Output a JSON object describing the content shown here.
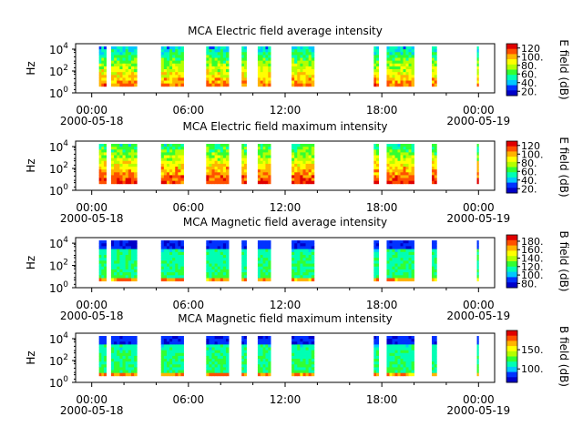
{
  "colors": {
    "colormap": [
      "#0000c8",
      "#0032ff",
      "#00c8ff",
      "#00ffb4",
      "#32ff32",
      "#b4ff00",
      "#ffff00",
      "#ffb400",
      "#ff5000",
      "#e00000"
    ],
    "axis": "#000000",
    "background": "#ffffff"
  },
  "chart_data": [
    {
      "type": "heatmap",
      "title": "MCA  Electric field average intensity",
      "ylabel": "Hz",
      "ytick_labels": [
        "10^0",
        "10^2",
        "10^4"
      ],
      "ylim_log10": [
        0,
        4.5
      ],
      "xtick_labels": [
        "00:00",
        "06:00",
        "12:00",
        "18:00",
        "00:00"
      ],
      "xtick_hours": [
        0,
        6,
        12,
        18,
        24
      ],
      "date_labels": [
        "2000-05-18",
        "2000-05-19"
      ],
      "xlim_hours": [
        -1.0,
        25.0
      ],
      "colorbar": {
        "label": "E field (dB)",
        "ticks": [
          20,
          40,
          60,
          80,
          100,
          120
        ],
        "tick_labels": [
          "20.",
          "40.",
          "60.",
          "80.",
          "100.",
          "120"
        ],
        "range": [
          10,
          130
        ]
      },
      "data_intervals_hours": [
        [
          0.45,
          0.9
        ],
        [
          1.2,
          2.8
        ],
        [
          4.3,
          5.7
        ],
        [
          7.1,
          8.5
        ],
        [
          9.3,
          9.6
        ],
        [
          10.3,
          11.1
        ],
        [
          12.4,
          13.8
        ],
        [
          17.5,
          17.8
        ],
        [
          18.3,
          20.0
        ],
        [
          21.1,
          21.4
        ],
        [
          23.9,
          24.0
        ]
      ],
      "intensity_profile": "high_at_low_freq"
    },
    {
      "type": "heatmap",
      "title": "MCA  Electric field maximum intensity",
      "ylabel": "Hz",
      "ytick_labels": [
        "10^0",
        "10^2",
        "10^4"
      ],
      "ylim_log10": [
        0,
        4.5
      ],
      "xtick_labels": [
        "00:00",
        "06:00",
        "12:00",
        "18:00",
        "00:00"
      ],
      "xtick_hours": [
        0,
        6,
        12,
        18,
        24
      ],
      "date_labels": [
        "2000-05-18",
        "2000-05-19"
      ],
      "xlim_hours": [
        -1.0,
        25.0
      ],
      "colorbar": {
        "label": "E field (dB)",
        "ticks": [
          20,
          40,
          60,
          80,
          100,
          120
        ],
        "tick_labels": [
          "20.",
          "40.",
          "60.",
          "80.",
          "100.",
          "120"
        ],
        "range": [
          10,
          130
        ]
      },
      "data_intervals_hours": [
        [
          0.45,
          0.9
        ],
        [
          1.2,
          2.8
        ],
        [
          4.3,
          5.7
        ],
        [
          7.1,
          8.5
        ],
        [
          9.3,
          9.6
        ],
        [
          10.3,
          11.1
        ],
        [
          12.4,
          13.8
        ],
        [
          17.5,
          17.8
        ],
        [
          18.3,
          20.0
        ],
        [
          21.1,
          21.4
        ],
        [
          23.9,
          24.0
        ]
      ],
      "intensity_profile": "high_at_low_freq_strong"
    },
    {
      "type": "heatmap",
      "title": "MCA  Magnetic field average intensity",
      "ylabel": "Hz",
      "ytick_labels": [
        "10^0",
        "10^2",
        "10^4"
      ],
      "ylim_log10": [
        0,
        4.5
      ],
      "xtick_labels": [
        "00:00",
        "06:00",
        "12:00",
        "18:00",
        "00:00"
      ],
      "xtick_hours": [
        0,
        6,
        12,
        18,
        24
      ],
      "date_labels": [
        "2000-05-18",
        "2000-05-19"
      ],
      "xlim_hours": [
        -1.0,
        25.0
      ],
      "colorbar": {
        "label": "B field (dB)",
        "ticks": [
          80,
          100,
          120,
          140,
          160,
          180
        ],
        "tick_labels": [
          "80.",
          "100.",
          "120.",
          "140.",
          "160.",
          "180."
        ],
        "range": [
          70,
          195
        ]
      },
      "data_intervals_hours": [
        [
          0.45,
          0.9
        ],
        [
          1.2,
          2.8
        ],
        [
          4.3,
          5.7
        ],
        [
          7.1,
          8.5
        ],
        [
          9.3,
          9.6
        ],
        [
          10.3,
          11.1
        ],
        [
          12.4,
          13.8
        ],
        [
          17.5,
          17.8
        ],
        [
          18.3,
          20.0
        ],
        [
          21.1,
          21.4
        ],
        [
          23.9,
          24.0
        ]
      ],
      "intensity_profile": "magnetic"
    },
    {
      "type": "heatmap",
      "title": "MCA  Magnetic field maximum intensity",
      "ylabel": "Hz",
      "ytick_labels": [
        "10^0",
        "10^2",
        "10^4"
      ],
      "ylim_log10": [
        0,
        4.5
      ],
      "xtick_labels": [
        "00:00",
        "06:00",
        "12:00",
        "18:00",
        "00:00"
      ],
      "xtick_hours": [
        0,
        6,
        12,
        18,
        24
      ],
      "date_labels": [
        "2000-05-18",
        "2000-05-19"
      ],
      "xlim_hours": [
        -1.0,
        25.0
      ],
      "colorbar": {
        "label": "B field (dB)",
        "ticks": [
          100,
          150
        ],
        "tick_labels": [
          "100.",
          "150."
        ],
        "range": [
          65,
          200
        ]
      },
      "data_intervals_hours": [
        [
          0.45,
          0.9
        ],
        [
          1.2,
          2.8
        ],
        [
          4.3,
          5.7
        ],
        [
          7.1,
          8.5
        ],
        [
          9.3,
          9.6
        ],
        [
          10.3,
          11.1
        ],
        [
          12.4,
          13.8
        ],
        [
          17.5,
          17.8
        ],
        [
          18.3,
          20.0
        ],
        [
          21.1,
          21.4
        ],
        [
          23.9,
          24.0
        ]
      ],
      "intensity_profile": "magnetic"
    }
  ]
}
